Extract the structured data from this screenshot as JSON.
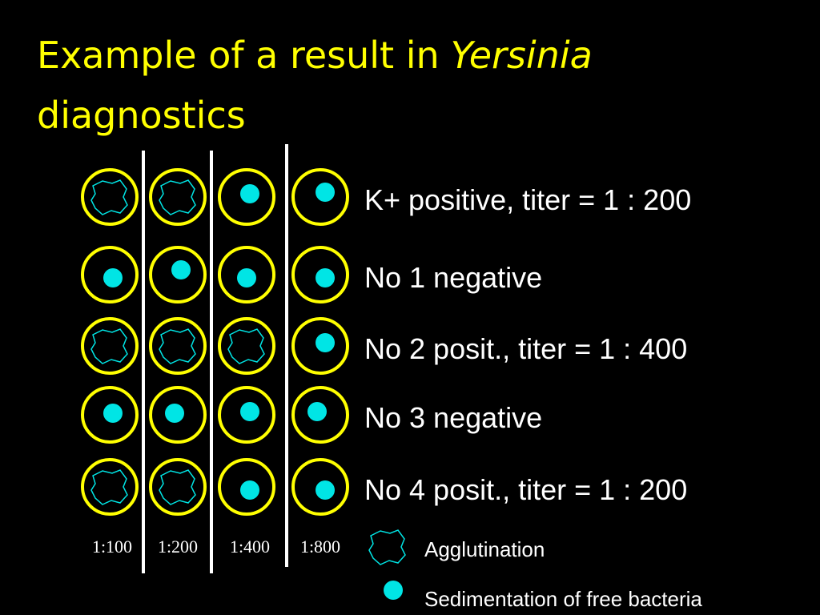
{
  "title": {
    "text": "Example of a result in",
    "italic": "Yersinia",
    "line2": "diagnostics"
  },
  "rows": [
    "K+ positive, titer = 1 : 200",
    "No 1 negative",
    "No 2 posit., titer = 1 : 400",
    "No 3 negative",
    "No 4 posit., titer = 1 : 200"
  ],
  "dilutions": [
    "1:100",
    "1:200",
    "1:400",
    "1:800"
  ],
  "legend": {
    "agglutination": "Agglutination",
    "sedimentation": "Sedimentation of free bacteria"
  }
}
